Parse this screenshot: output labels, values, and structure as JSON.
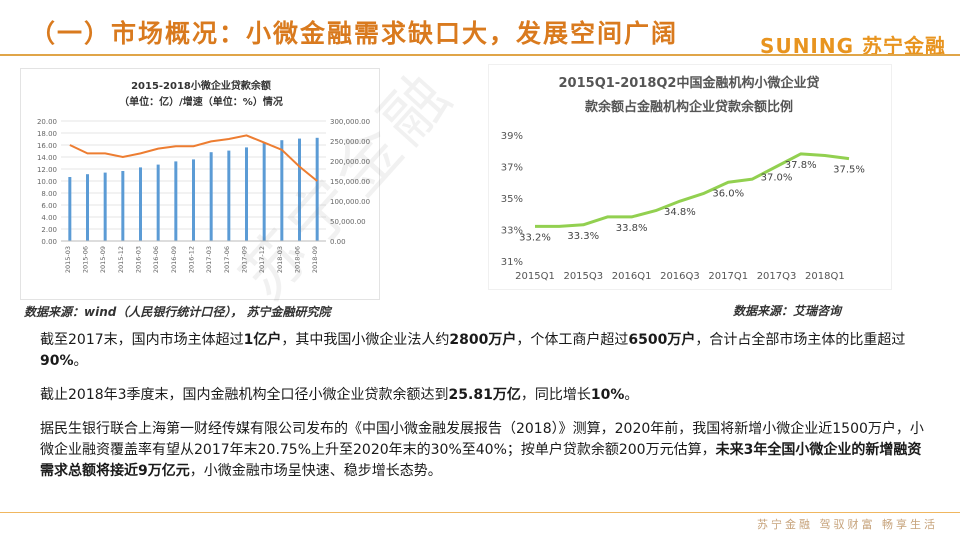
{
  "header": {
    "title": "（一）市场概况：小微金融需求缺口大，发展空间广阔",
    "logo_text": "SUNING 苏宁金融"
  },
  "watermark": "苏宁金融",
  "chart_data": [
    {
      "type": "bar",
      "title": "2015-2018小微企业贷款余额",
      "subtitle": "（单位：亿）/增速（单位：%）情况",
      "categories": [
        "2015-03",
        "2015-06",
        "2015-09",
        "2015-12",
        "2016-03",
        "2016-06",
        "2016-09",
        "2016-12",
        "2017-03",
        "2017-06",
        "2017-09",
        "2017-12",
        "2018-03",
        "2018-06",
        "2018-09"
      ],
      "series": [
        {
          "axis": "right",
          "chart": "bar",
          "color": "#5b9bd5",
          "values": [
            160000,
            167000,
            171000,
            175000,
            184000,
            191000,
            199000,
            204000,
            222000,
            226000,
            234000,
            245000,
            252000,
            256000,
            258000
          ]
        },
        {
          "axis": "left",
          "chart": "line",
          "color": "#ed7d31",
          "values": [
            16.0,
            14.6,
            14.6,
            14.0,
            14.6,
            15.4,
            15.8,
            15.8,
            16.6,
            17.0,
            17.6,
            16.4,
            15.2,
            12.4,
            10.0
          ]
        }
      ],
      "left_axis": {
        "ylim": [
          0,
          20
        ],
        "ticks": [
          "0.00",
          "2.00",
          "4.00",
          "6.00",
          "8.00",
          "10.00",
          "12.00",
          "14.00",
          "16.00",
          "18.00",
          "20.00"
        ]
      },
      "right_axis": {
        "ylim": [
          0,
          300000
        ],
        "ticks": [
          "0.00",
          "50,000.00",
          "100,000.00",
          "150,000.00",
          "200,000.00",
          "250,000.00",
          "300,000.00"
        ]
      },
      "grid": true
    },
    {
      "type": "line",
      "title": "2015Q1-2018Q2中国金融机构小微企业贷",
      "subtitle": "款余额占金融机构企业贷款余额比例",
      "color": "#92d050",
      "x": [
        "2015Q1",
        "2015Q2",
        "2015Q3",
        "2015Q4",
        "2016Q1",
        "2016Q2",
        "2016Q3",
        "2016Q4",
        "2017Q1",
        "2017Q2",
        "2017Q3",
        "2017Q4",
        "2018Q1",
        "2018Q2"
      ],
      "x_ticks": [
        "2015Q1",
        "2015Q3",
        "2016Q1",
        "2016Q3",
        "2017Q1",
        "2017Q3",
        "2018Q1"
      ],
      "values": [
        33.2,
        33.2,
        33.3,
        33.8,
        33.8,
        34.2,
        34.8,
        35.3,
        36.0,
        36.2,
        37.0,
        37.8,
        37.7,
        37.5
      ],
      "data_labels": [
        {
          "index": 0,
          "text": "33.2%"
        },
        {
          "index": 2,
          "text": "33.3%"
        },
        {
          "index": 4,
          "text": "33.8%"
        },
        {
          "index": 6,
          "text": "34.8%"
        },
        {
          "index": 8,
          "text": "36.0%"
        },
        {
          "index": 10,
          "text": "37.0%"
        },
        {
          "index": 11,
          "text": "37.8%"
        },
        {
          "index": 13,
          "text": "37.5%"
        }
      ],
      "ylim": [
        31,
        39
      ],
      "y_ticks": [
        "31%",
        "33%",
        "35%",
        "37%",
        "39%"
      ],
      "grid": false
    }
  ],
  "sources": {
    "left": "数据来源：wind（人民银行统计口径）， 苏宁金融研究院",
    "right": "数据来源：艾瑞咨询"
  },
  "body": {
    "p1": {
      "t1": "截至2017末，国内市场主体超过",
      "b1": "1亿户",
      "t2": "，其中我国小微企业法人约",
      "b2": "2800万户",
      "t3": "，个体工商户超过",
      "b3": "6500万户",
      "t4": "，合计占全部市场主体的比重超过",
      "b4": "90%",
      "t5": "。"
    },
    "p2": {
      "t1": "截止2018年3季度末，国内金融机构全口径小微企业贷款余额达到",
      "b1": "25.81万亿",
      "t2": "，同比增长",
      "b2": "10%",
      "t3": "。"
    },
    "p3": {
      "t1": "据民生银行联合上海第一财经传媒有限公司发布的《中国小微金融发展报告（2018）》测算，2020年前，我国将新增小微企业近1500万户，小微企业融资覆盖率有望从2017年末20.75%上升至2020年末的30%至40%；按单户贷款余额200万元估算，",
      "b1": "未来3年全国小微企业的新增融资需求总额将接近9万亿元",
      "t2": "，小微金融市场呈快速、稳步增长态势。"
    }
  },
  "footer": {
    "slogan": "苏宁金融 驾驭财富 畅享生活"
  }
}
